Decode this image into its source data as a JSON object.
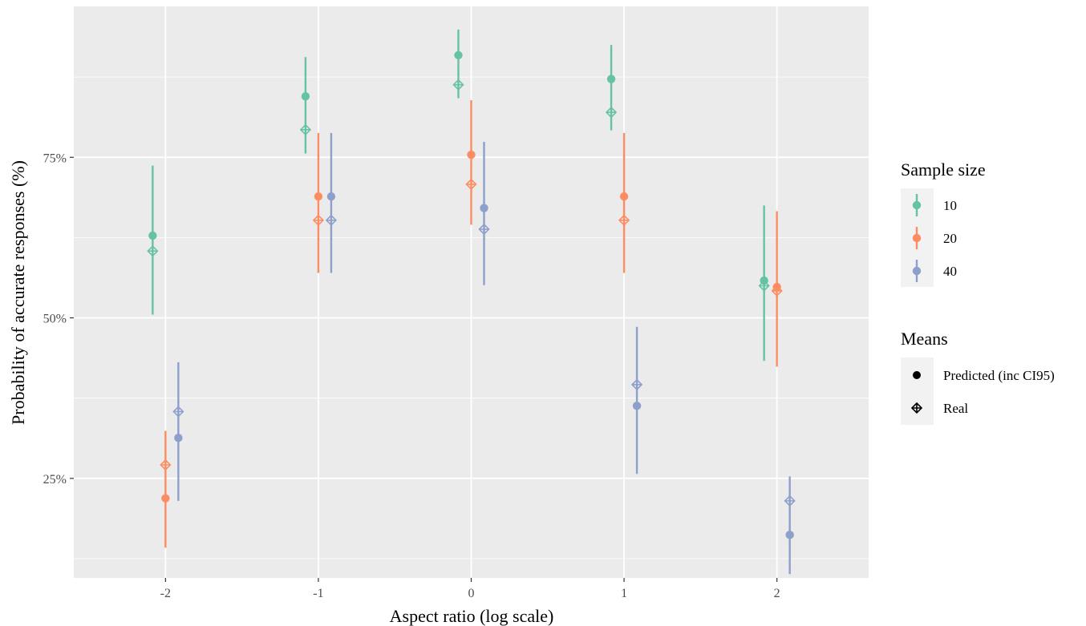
{
  "chart_data": {
    "type": "scatter",
    "xlabel": "Aspect ratio (log scale)",
    "ylabel": "Probability of accurate responses (%)",
    "x_ticks": [
      -2,
      -1,
      0,
      1,
      2
    ],
    "x_tick_labels": [
      "-2",
      "-1",
      "0",
      "1",
      "2"
    ],
    "y_ticks": [
      25,
      50,
      75
    ],
    "y_tick_labels": [
      "25%",
      "50%",
      "75%"
    ],
    "xlim": [
      -2.6,
      2.6
    ],
    "ylim": [
      9.5,
      98.5
    ],
    "grid": true,
    "legend_position": "right",
    "colors": {
      "10": "#66c2a5",
      "20": "#fc8d62",
      "40": "#8da0cb"
    },
    "dodge": 0.084,
    "legends": [
      {
        "title": "Sample size",
        "entries": [
          {
            "label": "10",
            "color": "#66c2a5"
          },
          {
            "label": "20",
            "color": "#fc8d62"
          },
          {
            "label": "40",
            "color": "#8da0cb"
          }
        ]
      },
      {
        "title": "Means",
        "entries": [
          {
            "label": "Predicted (inc CI95)",
            "shape": "circle"
          },
          {
            "label": "Real",
            "shape": "diamond"
          }
        ]
      }
    ],
    "series": [
      {
        "name": "10",
        "x": [
          -2,
          -1,
          0,
          1,
          2
        ],
        "predicted": [
          62.8,
          84.5,
          90.9,
          87.2,
          55.8
        ],
        "ci_low": [
          50.5,
          75.6,
          84.2,
          79.2,
          43.3
        ],
        "ci_high": [
          73.7,
          90.6,
          94.9,
          92.5,
          67.5
        ],
        "real": [
          60.4,
          79.3,
          86.3,
          82.0,
          55.0
        ]
      },
      {
        "name": "20",
        "x": [
          -2,
          -1,
          0,
          1,
          2
        ],
        "predicted": [
          21.9,
          68.9,
          75.4,
          68.9,
          54.8
        ],
        "ci_low": [
          14.2,
          57.0,
          64.5,
          57.0,
          42.4
        ],
        "ci_high": [
          32.4,
          78.8,
          83.9,
          78.8,
          66.6
        ],
        "real": [
          27.1,
          65.2,
          70.8,
          65.2,
          54.2
        ]
      },
      {
        "name": "40",
        "x": [
          -2,
          -1,
          0,
          1,
          2
        ],
        "predicted": [
          31.3,
          68.9,
          67.1,
          36.3,
          16.2
        ],
        "ci_low": [
          21.5,
          57.0,
          55.1,
          25.7,
          10.1
        ],
        "ci_high": [
          43.1,
          78.8,
          77.4,
          48.6,
          25.3
        ],
        "real": [
          35.4,
          65.2,
          63.8,
          39.6,
          21.5
        ]
      }
    ]
  }
}
